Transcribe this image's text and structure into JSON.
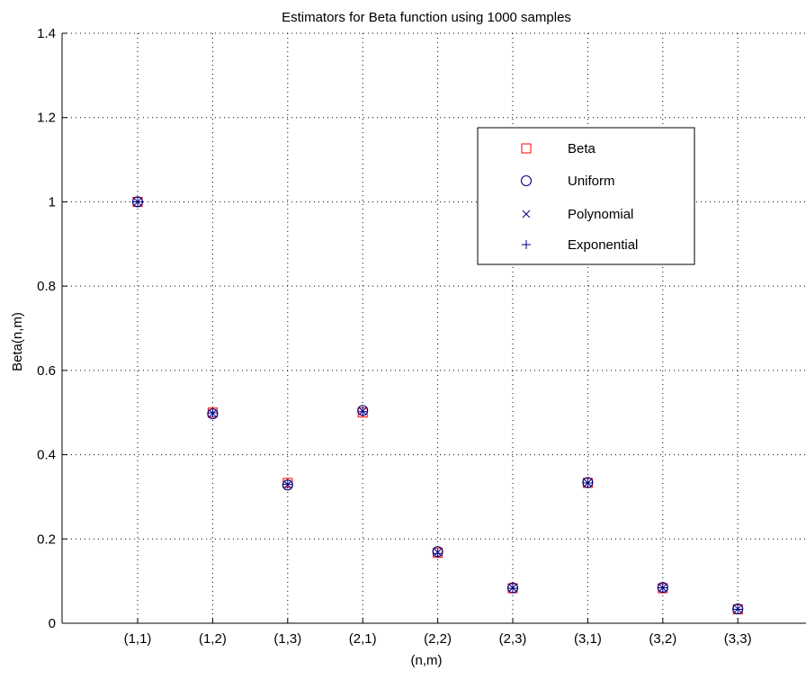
{
  "chart_data": {
    "type": "scatter",
    "title": "Estimators for Beta function using 1000 samples",
    "xlabel": "(n,m)",
    "ylabel": "Beta(n,m)",
    "categories": [
      "(1,1)",
      "(1,2)",
      "(1,3)",
      "(2,1)",
      "(2,2)",
      "(2,3)",
      "(3,1)",
      "(3,2)",
      "(3,3)"
    ],
    "ylim": [
      0,
      1.4
    ],
    "yticks": [
      "0",
      "0.2",
      "0.4",
      "0.6",
      "0.8",
      "1",
      "1.2",
      "1.4"
    ],
    "grid": true,
    "legend_position": "top-right",
    "series": [
      {
        "name": "Beta",
        "marker": "square",
        "color": "#ff0000",
        "values": [
          1.0,
          0.5,
          0.333,
          0.5,
          0.167,
          0.083,
          0.333,
          0.083,
          0.033
        ]
      },
      {
        "name": "Uniform",
        "marker": "circle",
        "color": "#00007f",
        "values": [
          1.0,
          0.497,
          0.328,
          0.505,
          0.17,
          0.084,
          0.334,
          0.085,
          0.034
        ]
      },
      {
        "name": "Polynomial",
        "marker": "x",
        "color": "#00007f",
        "values": [
          1.0,
          0.498,
          0.329,
          0.503,
          0.168,
          0.084,
          0.333,
          0.084,
          0.034
        ]
      },
      {
        "name": "Exponential",
        "marker": "plus",
        "color": "#00007f",
        "values": [
          1.0,
          0.499,
          0.33,
          0.502,
          0.166,
          0.083,
          0.333,
          0.084,
          0.033
        ]
      }
    ]
  }
}
